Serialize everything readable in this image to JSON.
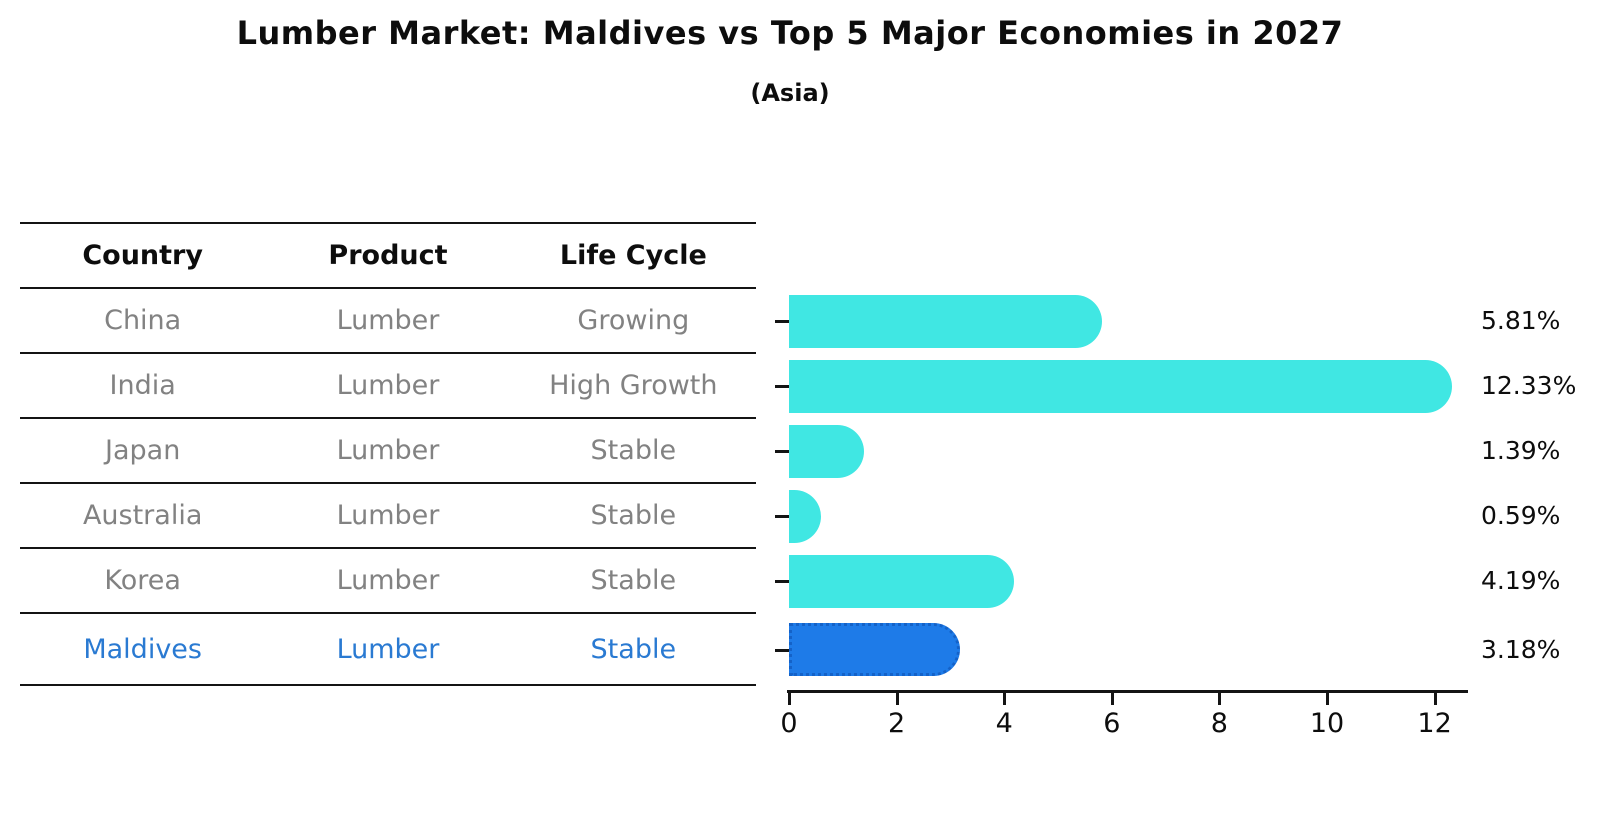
{
  "title": "Lumber Market: Maldives vs Top 5 Major Economies in 2027",
  "subtitle": "(Asia)",
  "table": {
    "headers": [
      "Country",
      "Product",
      "Life Cycle"
    ],
    "rows": [
      {
        "country": "China",
        "product": "Lumber",
        "life_cycle": "Growing",
        "highlight": false
      },
      {
        "country": "India",
        "product": "Lumber",
        "life_cycle": "High Growth",
        "highlight": false
      },
      {
        "country": "Japan",
        "product": "Lumber",
        "life_cycle": "Stable",
        "highlight": false
      },
      {
        "country": "Australia",
        "product": "Lumber",
        "life_cycle": "Stable",
        "highlight": false
      },
      {
        "country": "Korea",
        "product": "Lumber",
        "life_cycle": "Stable",
        "highlight": false
      },
      {
        "country": "Maldives",
        "product": "Lumber",
        "life_cycle": "Stable",
        "highlight": true
      }
    ]
  },
  "chart_data": {
    "type": "bar",
    "orientation": "horizontal",
    "title": "Lumber Market: Maldives vs Top 5 Major Economies in 2027",
    "subtitle": "(Asia)",
    "categories": [
      "China",
      "India",
      "Japan",
      "Australia",
      "Korea",
      "Maldives"
    ],
    "values": [
      5.81,
      12.33,
      1.39,
      0.59,
      4.19,
      3.18
    ],
    "value_labels": [
      "5.81%",
      "12.33%",
      "1.39%",
      "0.59%",
      "4.19%",
      "3.18%"
    ],
    "highlight_index": 5,
    "xlabel": "",
    "ylabel": "",
    "xticks": [
      0,
      2,
      4,
      6,
      8,
      10,
      12
    ],
    "xlim": [
      0,
      12.7
    ],
    "grid": false,
    "legend": false,
    "bar_color": "#40e7e3",
    "highlight_bar_color": "#1e7be8",
    "highlight_text_color": "#2a7ad2",
    "text_color_rows": "#828282",
    "axis_color": "#141414"
  }
}
